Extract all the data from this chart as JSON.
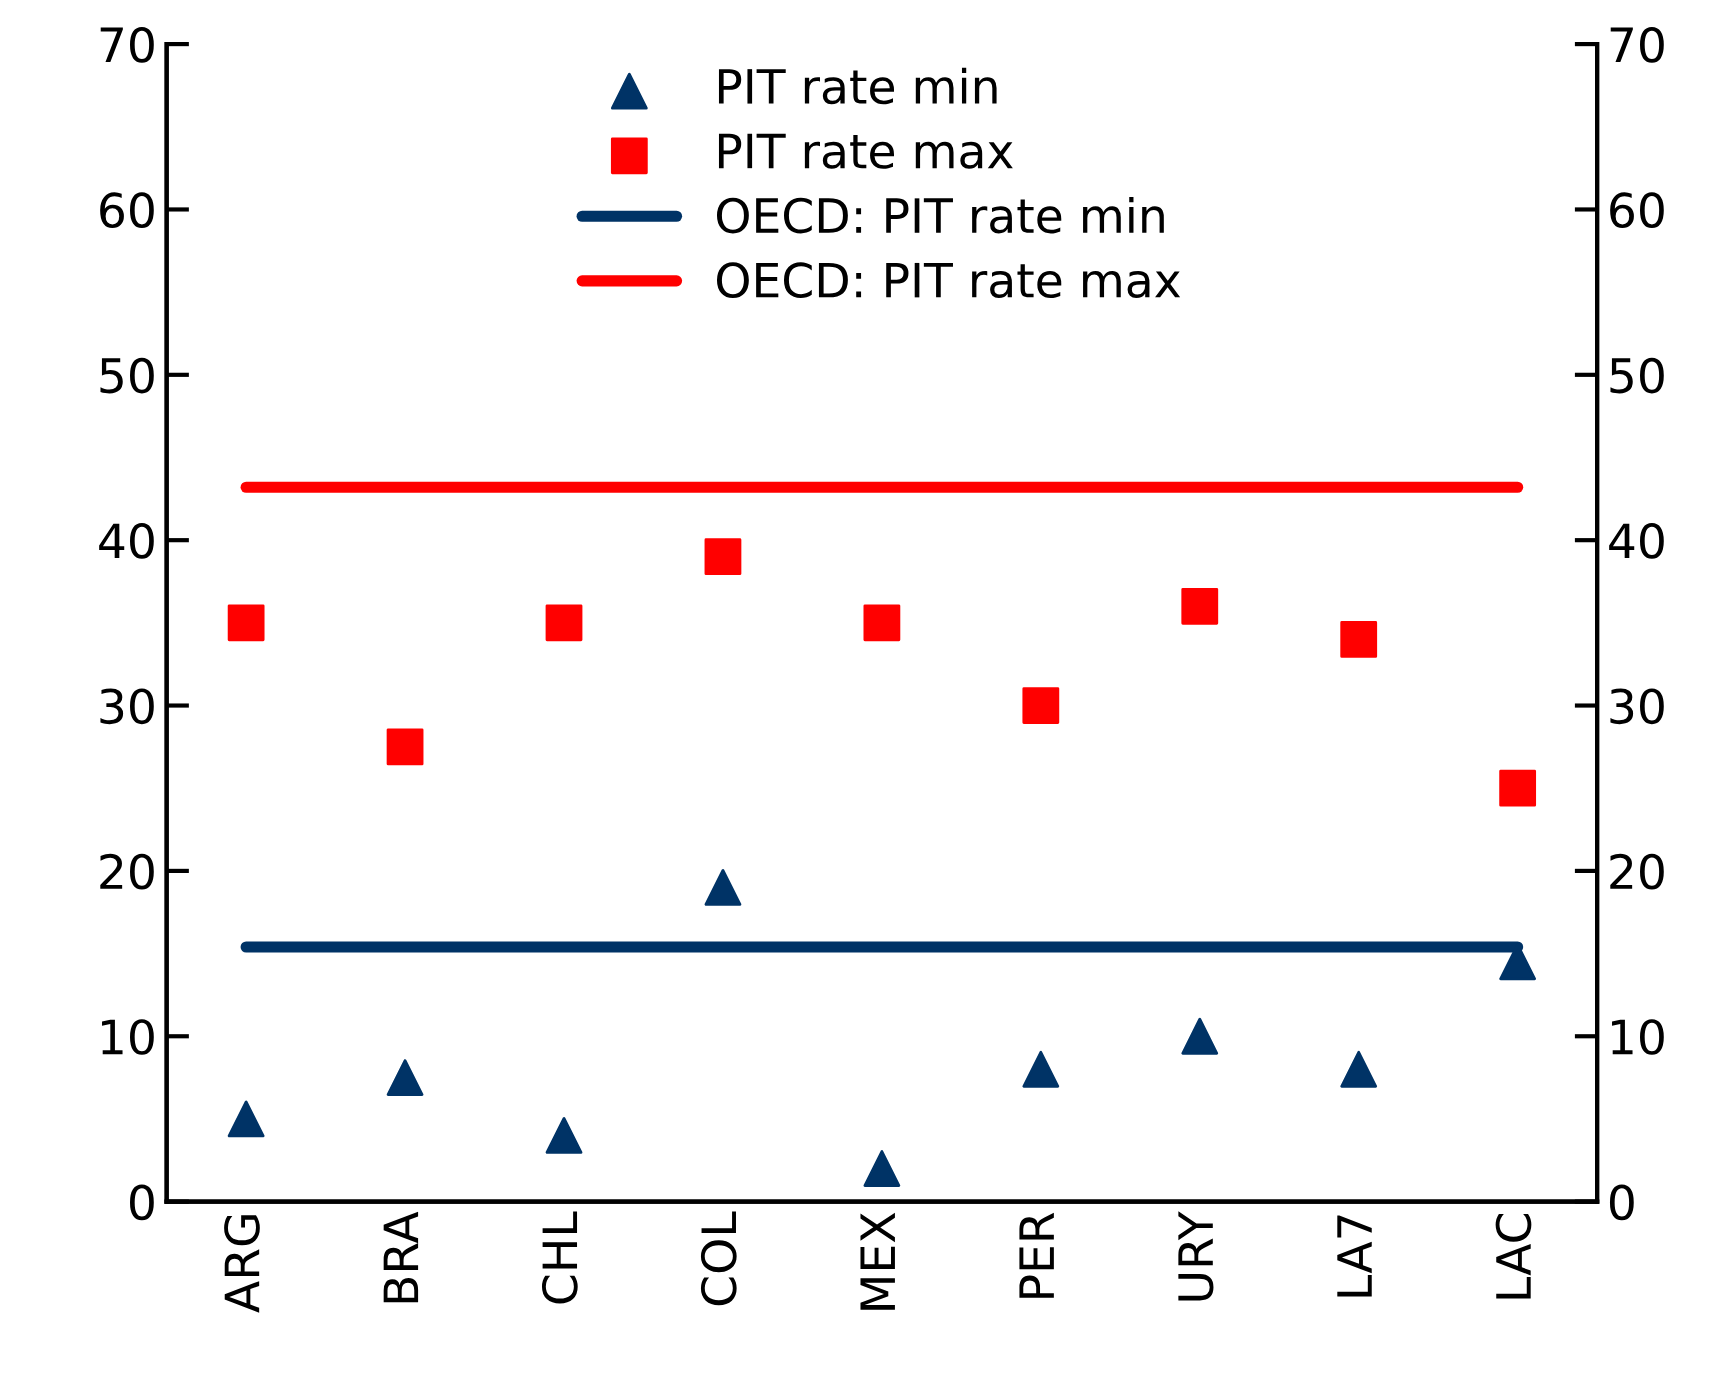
{
  "chart_data": {
    "type": "scatter",
    "categories": [
      "ARG",
      "BRA",
      "CHL",
      "COL",
      "MEX",
      "PER",
      "URY",
      "LA7",
      "LAC"
    ],
    "series": [
      {
        "name": "PIT rate min",
        "color": "#003366",
        "marker": "triangle",
        "values": [
          5,
          7.5,
          4,
          19,
          2,
          8,
          10,
          8,
          14.5
        ]
      },
      {
        "name": "PIT rate max",
        "color": "#ff0000",
        "marker": "square",
        "values": [
          35,
          27.5,
          35,
          39,
          35,
          30,
          36,
          34,
          25
        ]
      },
      {
        "name": "OECD: PIT rate min",
        "type": "line",
        "color": "#003366",
        "values": [
          15.4,
          15.4,
          15.4,
          15.4,
          15.4,
          15.4,
          15.4,
          15.4,
          15.4
        ]
      },
      {
        "name": "OECD: PIT rate max",
        "type": "line",
        "color": "#ff0000",
        "values": [
          43.2,
          43.2,
          43.2,
          43.2,
          43.2,
          43.2,
          43.2,
          43.2,
          43.2
        ]
      }
    ],
    "ylim": [
      0,
      70
    ],
    "yticks": [
      0,
      10,
      20,
      30,
      40,
      50,
      60,
      70
    ],
    "y2lim": [
      0,
      70
    ],
    "y2ticks": [
      0,
      10,
      20,
      30,
      40,
      50,
      60,
      70
    ],
    "grid": false,
    "legend": "top"
  }
}
